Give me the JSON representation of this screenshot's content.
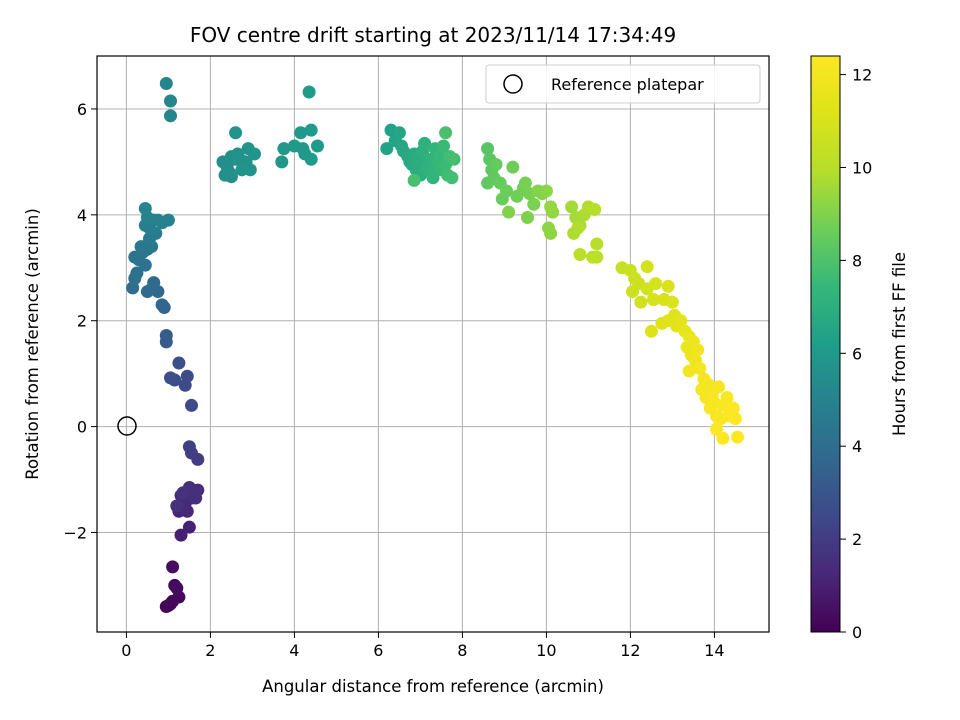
{
  "chart_data": {
    "type": "scatter",
    "title": "FOV centre drift starting at 2023/11/14 17:34:49",
    "xlabel": "Angular distance from reference (arcmin)",
    "ylabel": "Rotation from reference (arcmin)",
    "xlim": [
      -0.7,
      15.3
    ],
    "ylim": [
      -3.88,
      7.0
    ],
    "x_ticks": [
      0,
      2,
      4,
      6,
      8,
      10,
      12,
      14
    ],
    "y_ticks": [
      -2,
      0,
      2,
      4,
      6
    ],
    "y_tick_labels": [
      "−2",
      "0",
      "2",
      "4",
      "6"
    ],
    "grid": true,
    "legend": {
      "placement": "top-right",
      "entries": [
        "Reference platepar"
      ]
    },
    "reference_point": {
      "x": 0,
      "y": 0
    },
    "colorbar": {
      "label": "Hours from first FF file",
      "range": [
        0,
        12.4
      ],
      "ticks": [
        0,
        2,
        4,
        6,
        8,
        10,
        12
      ],
      "colormap": "viridis"
    },
    "series": [
      {
        "points": [
          [
            0.95,
            -3.4,
            0.05
          ],
          [
            1.0,
            -3.38,
            0.1
          ],
          [
            1.05,
            -3.35,
            0.15
          ],
          [
            1.1,
            -3.3,
            0.2
          ],
          [
            1.25,
            -3.22,
            0.25
          ],
          [
            1.15,
            -3.0,
            0.3
          ],
          [
            1.2,
            -3.05,
            0.35
          ],
          [
            1.1,
            -2.65,
            0.4
          ],
          [
            1.3,
            -2.05,
            1.0
          ],
          [
            1.5,
            -1.9,
            1.05
          ],
          [
            1.25,
            -1.6,
            1.1
          ],
          [
            1.35,
            -1.55,
            1.15
          ],
          [
            1.45,
            -1.6,
            1.2
          ],
          [
            1.4,
            -1.45,
            1.25
          ],
          [
            1.55,
            -1.35,
            1.3
          ],
          [
            1.3,
            -1.3,
            1.35
          ],
          [
            1.6,
            -1.25,
            1.4
          ],
          [
            1.7,
            -1.2,
            1.45
          ],
          [
            1.5,
            -1.15,
            1.5
          ],
          [
            1.65,
            -1.35,
            1.55
          ],
          [
            1.2,
            -1.5,
            1.6
          ],
          [
            1.35,
            -1.25,
            1.65
          ],
          [
            1.7,
            -0.62,
            2.0
          ],
          [
            1.55,
            -0.5,
            2.05
          ],
          [
            1.5,
            -0.38,
            2.1
          ],
          [
            1.55,
            0.4,
            2.5
          ],
          [
            1.4,
            0.78,
            2.55
          ],
          [
            1.45,
            0.95,
            2.6
          ],
          [
            1.15,
            0.88,
            2.65
          ],
          [
            1.05,
            0.92,
            2.7
          ],
          [
            1.25,
            1.2,
            2.75
          ],
          [
            0.95,
            1.6,
            3.2
          ],
          [
            0.95,
            1.72,
            3.25
          ],
          [
            0.9,
            2.25,
            3.6
          ],
          [
            0.85,
            2.3,
            3.65
          ],
          [
            0.75,
            2.55,
            3.7
          ],
          [
            0.6,
            2.6,
            3.75
          ],
          [
            0.5,
            2.55,
            3.8
          ],
          [
            0.65,
            2.72,
            3.85
          ],
          [
            0.15,
            2.62,
            3.9
          ],
          [
            0.2,
            2.8,
            4.1
          ],
          [
            0.25,
            2.9,
            4.15
          ],
          [
            0.45,
            3.05,
            4.2
          ],
          [
            0.3,
            3.15,
            4.25
          ],
          [
            0.2,
            3.2,
            4.3
          ],
          [
            0.4,
            3.3,
            4.35
          ],
          [
            0.5,
            3.35,
            4.4
          ],
          [
            0.6,
            3.4,
            4.45
          ],
          [
            0.35,
            3.4,
            4.5
          ],
          [
            0.55,
            3.55,
            4.6
          ],
          [
            0.7,
            3.65,
            4.65
          ],
          [
            0.55,
            3.75,
            4.7
          ],
          [
            0.45,
            3.8,
            4.75
          ],
          [
            0.65,
            3.9,
            4.8
          ],
          [
            0.85,
            3.85,
            4.85
          ],
          [
            0.75,
            3.9,
            4.9
          ],
          [
            1.0,
            3.9,
            4.95
          ],
          [
            0.5,
            3.95,
            5.0
          ],
          [
            0.45,
            4.12,
            5.05
          ],
          [
            0.95,
            6.48,
            5.1
          ],
          [
            1.05,
            6.15,
            5.15
          ],
          [
            1.05,
            5.87,
            5.2
          ],
          [
            2.3,
            5.0,
            5.5
          ],
          [
            2.4,
            4.9,
            5.52
          ],
          [
            2.45,
            4.8,
            5.54
          ],
          [
            2.5,
            4.72,
            5.56
          ],
          [
            2.35,
            4.75,
            5.58
          ],
          [
            2.6,
            5.05,
            5.6
          ],
          [
            2.5,
            5.1,
            5.62
          ],
          [
            2.65,
            5.15,
            5.64
          ],
          [
            2.7,
            5.05,
            5.66
          ],
          [
            2.9,
            5.25,
            5.68
          ],
          [
            2.85,
            5.0,
            5.7
          ],
          [
            2.95,
            4.85,
            5.72
          ],
          [
            2.75,
            4.85,
            5.74
          ],
          [
            3.05,
            5.15,
            5.76
          ],
          [
            2.6,
            5.55,
            5.78
          ],
          [
            3.7,
            5.0,
            5.9
          ],
          [
            3.75,
            5.25,
            5.92
          ],
          [
            4.0,
            5.3,
            5.94
          ],
          [
            4.2,
            5.25,
            5.96
          ],
          [
            4.15,
            5.55,
            5.98
          ],
          [
            4.25,
            5.15,
            6.0
          ],
          [
            4.4,
            5.05,
            6.02
          ],
          [
            4.4,
            5.6,
            6.04
          ],
          [
            4.55,
            5.3,
            6.06
          ],
          [
            4.35,
            6.32,
            6.08
          ],
          [
            6.2,
            5.25,
            6.4
          ],
          [
            6.3,
            5.6,
            6.45
          ],
          [
            6.4,
            5.4,
            6.5
          ],
          [
            6.5,
            5.55,
            6.55
          ],
          [
            6.55,
            5.3,
            6.6
          ],
          [
            6.6,
            5.2,
            6.65
          ],
          [
            6.7,
            5.1,
            6.7
          ],
          [
            6.75,
            5.0,
            6.75
          ],
          [
            6.8,
            4.95,
            6.8
          ],
          [
            6.85,
            5.15,
            6.85
          ],
          [
            6.9,
            4.85,
            6.9
          ],
          [
            6.95,
            5.05,
            6.95
          ],
          [
            7.0,
            4.75,
            7.0
          ],
          [
            7.05,
            5.2,
            7.05
          ],
          [
            7.1,
            5.35,
            7.1
          ],
          [
            7.15,
            4.9,
            7.15
          ],
          [
            7.2,
            5.05,
            7.2
          ],
          [
            7.25,
            4.8,
            7.25
          ],
          [
            7.3,
            4.7,
            7.3
          ],
          [
            7.35,
            5.25,
            7.35
          ],
          [
            7.4,
            5.0,
            7.4
          ],
          [
            7.45,
            5.1,
            7.45
          ],
          [
            7.5,
            4.85,
            7.5
          ],
          [
            7.55,
            5.3,
            7.55
          ],
          [
            7.6,
            4.95,
            7.6
          ],
          [
            7.65,
            4.75,
            7.65
          ],
          [
            7.7,
            5.1,
            7.7
          ],
          [
            7.75,
            4.7,
            7.75
          ],
          [
            7.8,
            5.05,
            7.8
          ],
          [
            6.85,
            4.65,
            7.85
          ],
          [
            7.6,
            5.55,
            7.9
          ],
          [
            8.6,
            5.25,
            8.2
          ],
          [
            8.65,
            5.05,
            8.25
          ],
          [
            8.7,
            4.85,
            8.3
          ],
          [
            8.6,
            4.6,
            8.35
          ],
          [
            8.75,
            4.7,
            8.4
          ],
          [
            8.8,
            4.95,
            8.45
          ],
          [
            8.9,
            4.6,
            8.5
          ],
          [
            8.95,
            4.3,
            8.55
          ],
          [
            9.05,
            4.45,
            8.6
          ],
          [
            9.2,
            4.9,
            8.65
          ],
          [
            9.3,
            4.35,
            8.7
          ],
          [
            9.45,
            4.5,
            8.75
          ],
          [
            9.5,
            4.6,
            8.8
          ],
          [
            9.6,
            4.4,
            8.85
          ],
          [
            9.7,
            4.2,
            8.9
          ],
          [
            9.55,
            3.95,
            8.95
          ],
          [
            9.1,
            4.05,
            9.0
          ],
          [
            9.8,
            4.45,
            9.05
          ],
          [
            9.9,
            4.4,
            9.1
          ],
          [
            10.0,
            4.45,
            9.15
          ],
          [
            10.05,
            3.75,
            9.2
          ],
          [
            10.1,
            3.65,
            9.25
          ],
          [
            10.15,
            4.05,
            9.3
          ],
          [
            10.1,
            4.15,
            9.35
          ],
          [
            10.6,
            4.15,
            9.6
          ],
          [
            10.7,
            3.95,
            9.65
          ],
          [
            10.8,
            3.8,
            9.7
          ],
          [
            10.9,
            4.0,
            9.75
          ],
          [
            10.65,
            3.65,
            9.8
          ],
          [
            10.75,
            3.75,
            9.85
          ],
          [
            11.0,
            4.15,
            9.9
          ],
          [
            11.15,
            4.1,
            9.95
          ],
          [
            11.2,
            3.45,
            10.0
          ],
          [
            10.8,
            3.25,
            10.05
          ],
          [
            11.1,
            3.2,
            10.1
          ],
          [
            11.2,
            3.2,
            10.15
          ],
          [
            11.8,
            3.0,
            10.5
          ],
          [
            12.0,
            2.95,
            10.55
          ],
          [
            12.1,
            2.8,
            10.6
          ],
          [
            12.05,
            2.55,
            10.65
          ],
          [
            12.2,
            2.7,
            10.7
          ],
          [
            12.25,
            2.35,
            10.75
          ],
          [
            12.4,
            2.6,
            10.8
          ],
          [
            12.4,
            3.02,
            10.85
          ],
          [
            12.55,
            2.4,
            10.9
          ],
          [
            12.6,
            2.7,
            10.95
          ],
          [
            12.8,
            2.4,
            11.0
          ],
          [
            12.9,
            2.65,
            11.05
          ],
          [
            13.0,
            2.35,
            11.1
          ],
          [
            12.5,
            1.8,
            11.15
          ],
          [
            12.75,
            1.95,
            11.2
          ],
          [
            12.9,
            2.0,
            11.25
          ],
          [
            13.05,
            2.1,
            11.3
          ],
          [
            13.1,
            1.9,
            11.35
          ],
          [
            13.2,
            2.0,
            11.4
          ],
          [
            13.3,
            1.8,
            11.6
          ],
          [
            13.35,
            1.5,
            11.65
          ],
          [
            13.4,
            1.7,
            11.7
          ],
          [
            13.45,
            1.35,
            11.75
          ],
          [
            13.5,
            1.6,
            11.8
          ],
          [
            13.55,
            1.25,
            11.85
          ],
          [
            13.6,
            1.45,
            11.9
          ],
          [
            13.65,
            1.1,
            11.95
          ],
          [
            13.4,
            1.05,
            12.0
          ],
          [
            13.7,
            0.7,
            12.05
          ],
          [
            13.75,
            0.9,
            12.1
          ],
          [
            13.8,
            0.55,
            12.12
          ],
          [
            13.85,
            0.8,
            12.14
          ],
          [
            13.9,
            0.35,
            12.16
          ],
          [
            13.95,
            0.6,
            12.18
          ],
          [
            14.0,
            0.45,
            12.2
          ],
          [
            14.05,
            0.2,
            12.22
          ],
          [
            14.1,
            0.75,
            12.24
          ],
          [
            14.15,
            0.15,
            12.26
          ],
          [
            14.2,
            0.4,
            12.28
          ],
          [
            14.3,
            0.55,
            12.3
          ],
          [
            14.35,
            0.2,
            12.32
          ],
          [
            14.45,
            0.35,
            12.34
          ],
          [
            14.5,
            0.15,
            12.36
          ],
          [
            14.05,
            -0.05,
            12.38
          ],
          [
            14.2,
            -0.22,
            12.39
          ],
          [
            14.55,
            -0.2,
            12.4
          ]
        ]
      }
    ]
  }
}
